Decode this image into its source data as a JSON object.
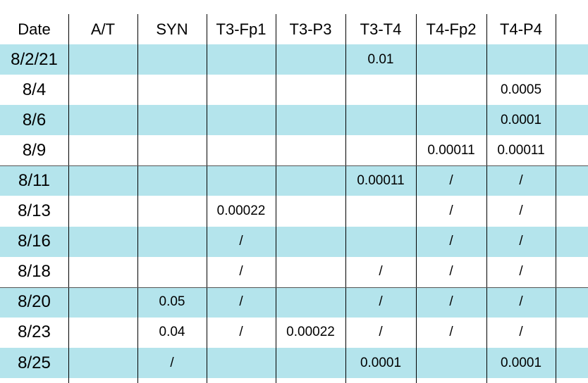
{
  "table": {
    "header": [
      "Date",
      "A/T",
      "SYN",
      "T3-Fp1",
      "T3-P3",
      "T3-T4",
      "T4-Fp2",
      "T4-P4"
    ],
    "rows": [
      [
        "8/2/21",
        null,
        null,
        null,
        null,
        "0.01",
        null,
        null
      ],
      [
        "8/4",
        null,
        null,
        null,
        null,
        null,
        null,
        "0.0005"
      ],
      [
        "8/6",
        null,
        null,
        null,
        null,
        null,
        null,
        "0.0001"
      ],
      [
        "8/9",
        null,
        null,
        null,
        null,
        null,
        "0.00011",
        "0.00011"
      ],
      [
        "8/11",
        null,
        null,
        null,
        null,
        "0.00011",
        "/",
        "/"
      ],
      [
        "8/13",
        null,
        null,
        "0.00022",
        null,
        null,
        "/",
        "/"
      ],
      [
        "8/16",
        null,
        null,
        "/",
        null,
        null,
        "/",
        "/"
      ],
      [
        "8/18",
        null,
        null,
        "/",
        null,
        "/",
        "/",
        "/"
      ],
      [
        "8/20",
        null,
        "0.05",
        "/",
        null,
        "/",
        "/",
        "/"
      ],
      [
        "8/23",
        null,
        "0.04",
        "/",
        "0.00022",
        "/",
        "/",
        "/"
      ],
      [
        "8/25",
        null,
        "/",
        null,
        null,
        "0.0001",
        null,
        "0.0001"
      ]
    ]
  }
}
